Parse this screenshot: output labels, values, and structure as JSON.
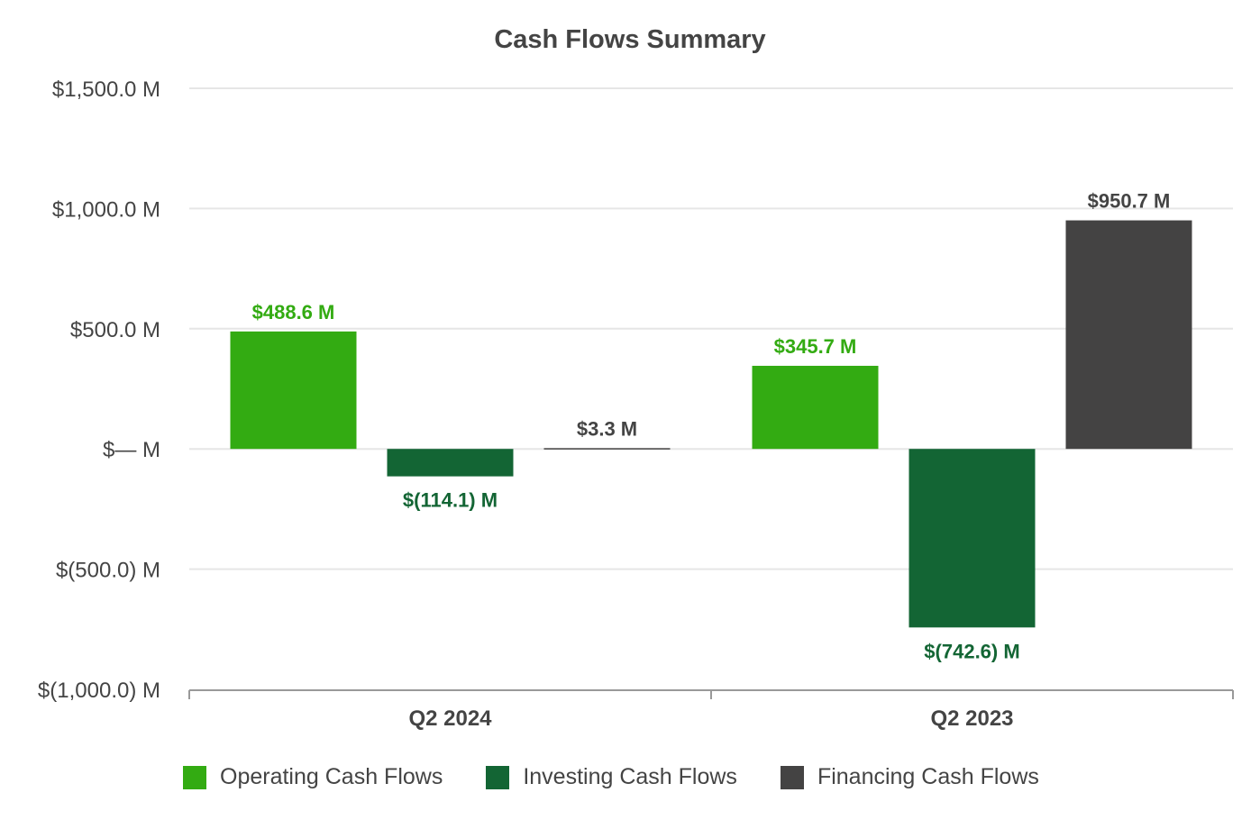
{
  "chart_data": {
    "type": "bar",
    "title": "Cash Flows Summary",
    "xlabel": "",
    "ylabel": "",
    "ylim": [
      -1000,
      1500
    ],
    "yticks": [
      1500,
      1000,
      500,
      0,
      -500,
      -1000
    ],
    "ytick_labels": [
      "$1,500.0 M",
      "$1,000.0 M",
      "$500.0 M",
      "$— M",
      "$(500.0) M",
      "$(1,000.0) M"
    ],
    "categories": [
      "Q2 2024",
      "Q2 2023"
    ],
    "grid": true,
    "legend_position": "bottom",
    "series": [
      {
        "name": "Operating Cash Flows",
        "color": "#33ab12",
        "values": [
          488.6,
          345.7
        ],
        "labels": [
          "$488.6 M",
          "$345.7 M"
        ]
      },
      {
        "name": "Investing Cash Flows",
        "color": "#136534",
        "values": [
          -114.1,
          -742.6
        ],
        "labels": [
          "$(114.1) M",
          "$(742.6) M"
        ]
      },
      {
        "name": "Financing Cash Flows",
        "color": "#444343",
        "values": [
          3.3,
          950.7
        ],
        "labels": [
          "$3.3 M",
          "$950.7 M"
        ]
      }
    ]
  }
}
